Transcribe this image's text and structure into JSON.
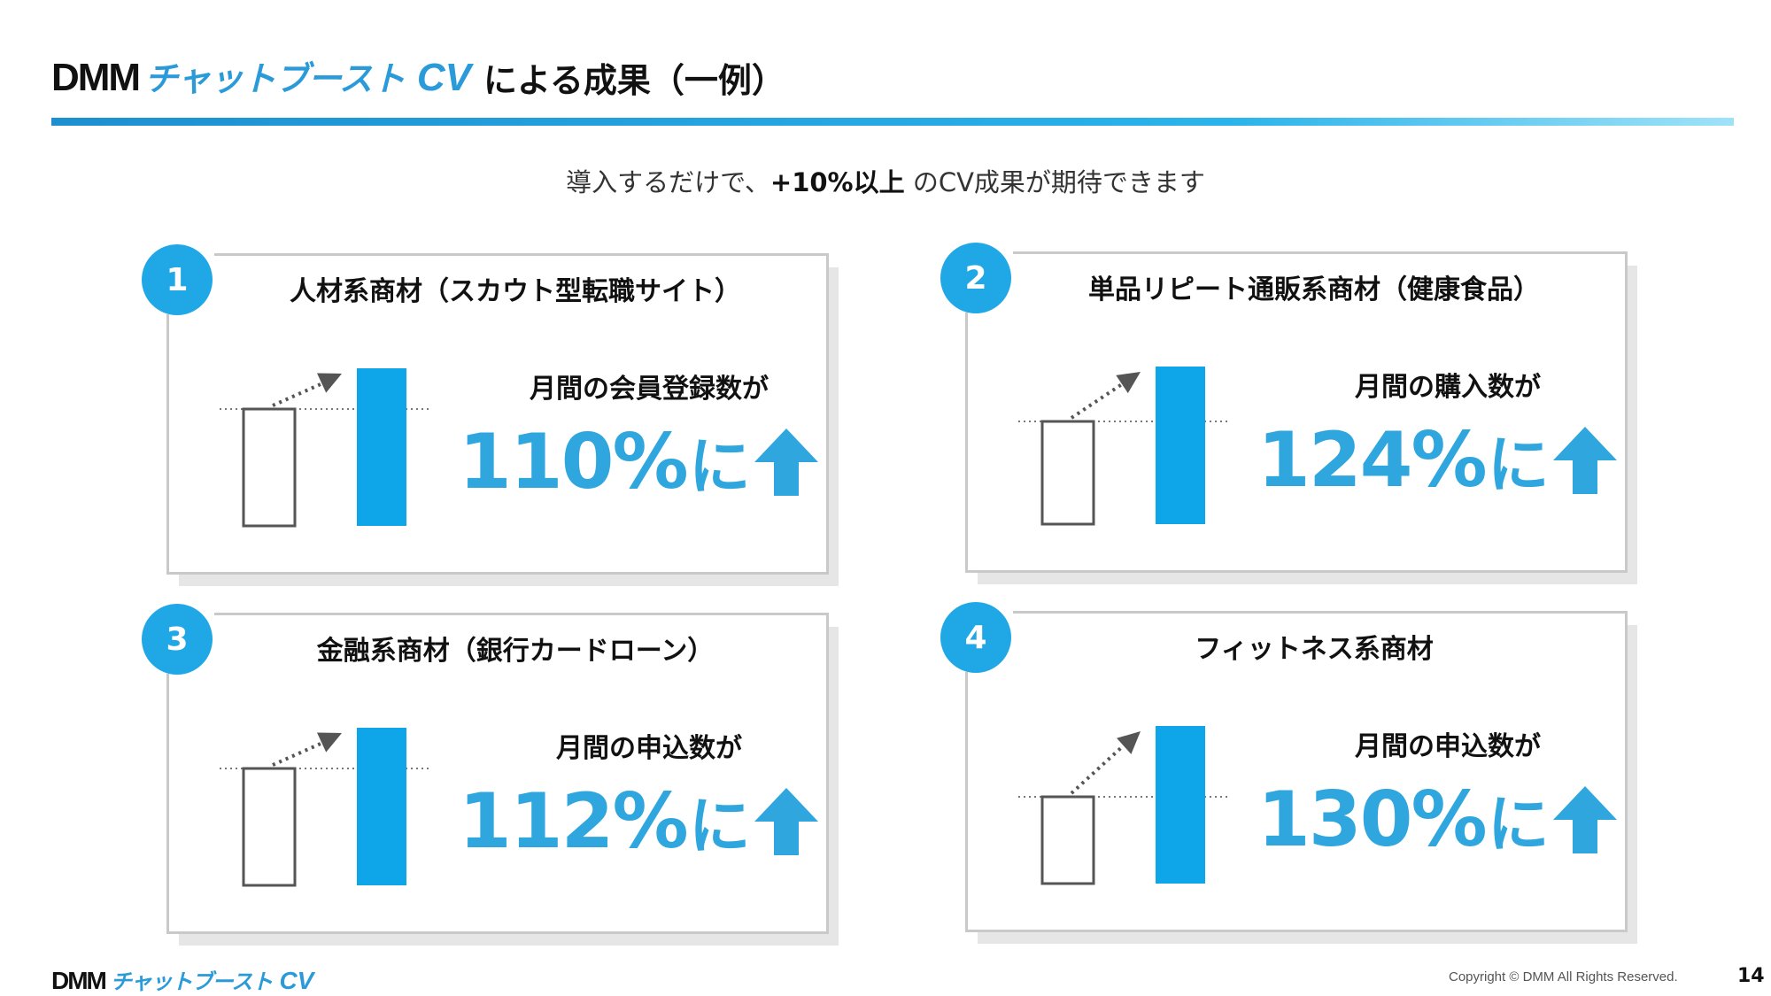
{
  "header": {
    "logo_brand": "DMM",
    "logo_product": "チャットブースト",
    "logo_suffix": "CV",
    "title_suffix": "による成果（一例）"
  },
  "subtitle": {
    "before": "導入するだけで、",
    "emphasis": "+10%以上",
    "after": " のCV成果が期待できます"
  },
  "colors": {
    "accent": "#2fa7de",
    "badge": "#20a8e6",
    "bar": "#0ea5e9",
    "card_border": "#c9c9c9"
  },
  "cards": [
    {
      "number": "1",
      "title": "人材系商材（スカウト型転職サイト）",
      "metric": "月間の会員登録数が",
      "result": "110%",
      "suffix": "に",
      "icon": "arrow-up-icon",
      "before_fraction": 0.74
    },
    {
      "number": "2",
      "title": "単品リピート通販系商材（健康食品）",
      "metric": "月間の購入数が",
      "result": "124%",
      "suffix": "に",
      "icon": "arrow-up-icon",
      "before_fraction": 0.65
    },
    {
      "number": "3",
      "title": "金融系商材（銀行カードローン）",
      "metric": "月間の申込数が",
      "result": "112%",
      "suffix": "に",
      "icon": "arrow-up-icon",
      "before_fraction": 0.74
    },
    {
      "number": "4",
      "title": "フィットネス系商材",
      "metric": "月間の申込数が",
      "result": "130%",
      "suffix": "に",
      "icon": "arrow-up-icon",
      "before_fraction": 0.55
    }
  ],
  "footer": {
    "logo_brand": "DMM",
    "logo_product": "チャットブースト",
    "logo_suffix": "CV",
    "copyright": "Copyright © DMM All Rights Reserved.",
    "page_number": "14"
  }
}
